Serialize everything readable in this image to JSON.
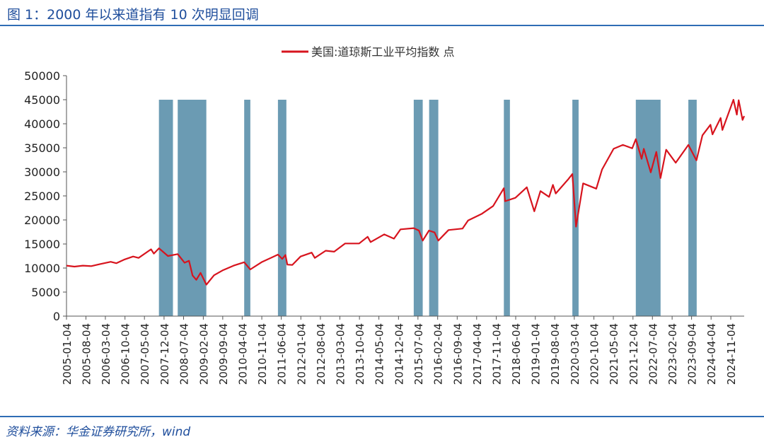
{
  "figure": {
    "title": "图 1：2000 年以来道指有 10 次明显回调",
    "source": "资料来源：华金证券研究所，wind"
  },
  "colors": {
    "line": "#d7141e",
    "shade": "#6b9bb3",
    "rule": "#2f6db5"
  },
  "chart_data": {
    "type": "line",
    "title": "",
    "xlabel": "",
    "ylabel": "",
    "legend_position": "top-center",
    "ylim": [
      0,
      50000
    ],
    "yticks": [
      0,
      5000,
      10000,
      15000,
      20000,
      25000,
      30000,
      35000,
      40000,
      45000,
      50000
    ],
    "xlim": [
      "2005-01-04",
      "2025-03-31"
    ],
    "xticks": [
      "2005-01-04",
      "2005-08-04",
      "2006-03-04",
      "2006-10-04",
      "2007-05-04",
      "2007-12-04",
      "2008-07-04",
      "2009-02-04",
      "2009-09-04",
      "2010-04-04",
      "2010-11-04",
      "2011-06-04",
      "2012-01-04",
      "2012-08-04",
      "2013-03-04",
      "2013-10-04",
      "2014-05-04",
      "2014-12-04",
      "2015-07-04",
      "2016-02-04",
      "2016-09-04",
      "2017-04-04",
      "2017-11-04",
      "2018-06-04",
      "2019-01-04",
      "2019-08-04",
      "2020-03-04",
      "2020-10-04",
      "2021-05-04",
      "2021-12-04",
      "2022-07-04",
      "2023-02-04",
      "2023-09-04",
      "2024-04-04",
      "2024-11-04"
    ],
    "series": [
      {
        "name": "美国:道琼斯工业平均指数 点",
        "points": [
          [
            "2005-01-04",
            10500
          ],
          [
            "2005-04-01",
            10300
          ],
          [
            "2005-07-01",
            10500
          ],
          [
            "2005-10-01",
            10400
          ],
          [
            "2006-01-01",
            10800
          ],
          [
            "2006-05-01",
            11300
          ],
          [
            "2006-07-01",
            11000
          ],
          [
            "2006-10-01",
            11800
          ],
          [
            "2007-01-01",
            12400
          ],
          [
            "2007-03-01",
            12100
          ],
          [
            "2007-07-15",
            13900
          ],
          [
            "2007-08-15",
            13000
          ],
          [
            "2007-10-09",
            14100
          ],
          [
            "2008-01-15",
            12500
          ],
          [
            "2008-05-01",
            12900
          ],
          [
            "2008-07-15",
            11100
          ],
          [
            "2008-09-01",
            11500
          ],
          [
            "2008-10-10",
            8450
          ],
          [
            "2008-11-20",
            7550
          ],
          [
            "2009-01-05",
            9000
          ],
          [
            "2009-03-09",
            6550
          ],
          [
            "2009-06-01",
            8500
          ],
          [
            "2009-09-01",
            9500
          ],
          [
            "2010-01-01",
            10500
          ],
          [
            "2010-04-26",
            11200
          ],
          [
            "2010-07-01",
            9700
          ],
          [
            "2010-11-01",
            11200
          ],
          [
            "2011-04-29",
            12800
          ],
          [
            "2011-06-15",
            11900
          ],
          [
            "2011-07-20",
            12700
          ],
          [
            "2011-08-10",
            10700
          ],
          [
            "2011-10-03",
            10650
          ],
          [
            "2012-01-01",
            12400
          ],
          [
            "2012-05-01",
            13200
          ],
          [
            "2012-06-04",
            12100
          ],
          [
            "2012-10-01",
            13600
          ],
          [
            "2013-01-01",
            13400
          ],
          [
            "2013-05-01",
            15100
          ],
          [
            "2013-10-01",
            15100
          ],
          [
            "2014-01-01",
            16500
          ],
          [
            "2014-02-03",
            15400
          ],
          [
            "2014-07-01",
            17000
          ],
          [
            "2014-10-15",
            16100
          ],
          [
            "2014-12-26",
            18050
          ],
          [
            "2015-05-19",
            18300
          ],
          [
            "2015-07-15",
            17800
          ],
          [
            "2015-08-25",
            15700
          ],
          [
            "2015-11-01",
            17800
          ],
          [
            "2016-01-01",
            17400
          ],
          [
            "2016-02-11",
            15700
          ],
          [
            "2016-06-01",
            17900
          ],
          [
            "2016-11-01",
            18200
          ],
          [
            "2017-01-01",
            19900
          ],
          [
            "2017-06-01",
            21300
          ],
          [
            "2017-10-01",
            22900
          ],
          [
            "2018-01-26",
            26600
          ],
          [
            "2018-02-08",
            23900
          ],
          [
            "2018-06-01",
            24600
          ],
          [
            "2018-10-03",
            26800
          ],
          [
            "2018-12-24",
            21800
          ],
          [
            "2019-03-01",
            26000
          ],
          [
            "2019-06-03",
            24800
          ],
          [
            "2019-07-15",
            27300
          ],
          [
            "2019-08-15",
            25500
          ],
          [
            "2019-12-31",
            28500
          ],
          [
            "2020-02-12",
            29550
          ],
          [
            "2020-03-23",
            18600
          ],
          [
            "2020-06-08",
            27600
          ],
          [
            "2020-10-30",
            26500
          ],
          [
            "2021-01-01",
            30500
          ],
          [
            "2021-05-07",
            34800
          ],
          [
            "2021-08-16",
            35600
          ],
          [
            "2021-11-26",
            34900
          ],
          [
            "2022-01-04",
            36800
          ],
          [
            "2022-03-08",
            32700
          ],
          [
            "2022-04-01",
            34800
          ],
          [
            "2022-06-16",
            29900
          ],
          [
            "2022-08-16",
            34150
          ],
          [
            "2022-09-30",
            28700
          ],
          [
            "2022-12-01",
            34600
          ],
          [
            "2023-03-15",
            31900
          ],
          [
            "2023-07-31",
            35600
          ],
          [
            "2023-10-27",
            32400
          ],
          [
            "2024-01-01",
            37600
          ],
          [
            "2024-03-28",
            39800
          ],
          [
            "2024-04-19",
            37800
          ],
          [
            "2024-07-17",
            41200
          ],
          [
            "2024-08-05",
            38700
          ],
          [
            "2024-12-04",
            45000
          ],
          [
            "2025-01-10",
            41900
          ],
          [
            "2025-01-30",
            44900
          ],
          [
            "2025-03-13",
            40800
          ],
          [
            "2025-03-31",
            41600
          ]
        ]
      }
    ],
    "shaded_periods": [
      [
        "2007-10-09",
        "2008-03-10"
      ],
      [
        "2008-05-01",
        "2009-03-09"
      ],
      [
        "2010-04-26",
        "2010-07-02"
      ],
      [
        "2011-04-29",
        "2011-07-30"
      ],
      [
        "2015-05-19",
        "2015-08-25"
      ],
      [
        "2015-11-03",
        "2016-02-11"
      ],
      [
        "2018-01-26",
        "2018-04-02"
      ],
      [
        "2020-02-12",
        "2020-04-20"
      ],
      [
        "2022-01-04",
        "2022-10-01"
      ],
      [
        "2023-07-31",
        "2023-10-30"
      ]
    ]
  }
}
